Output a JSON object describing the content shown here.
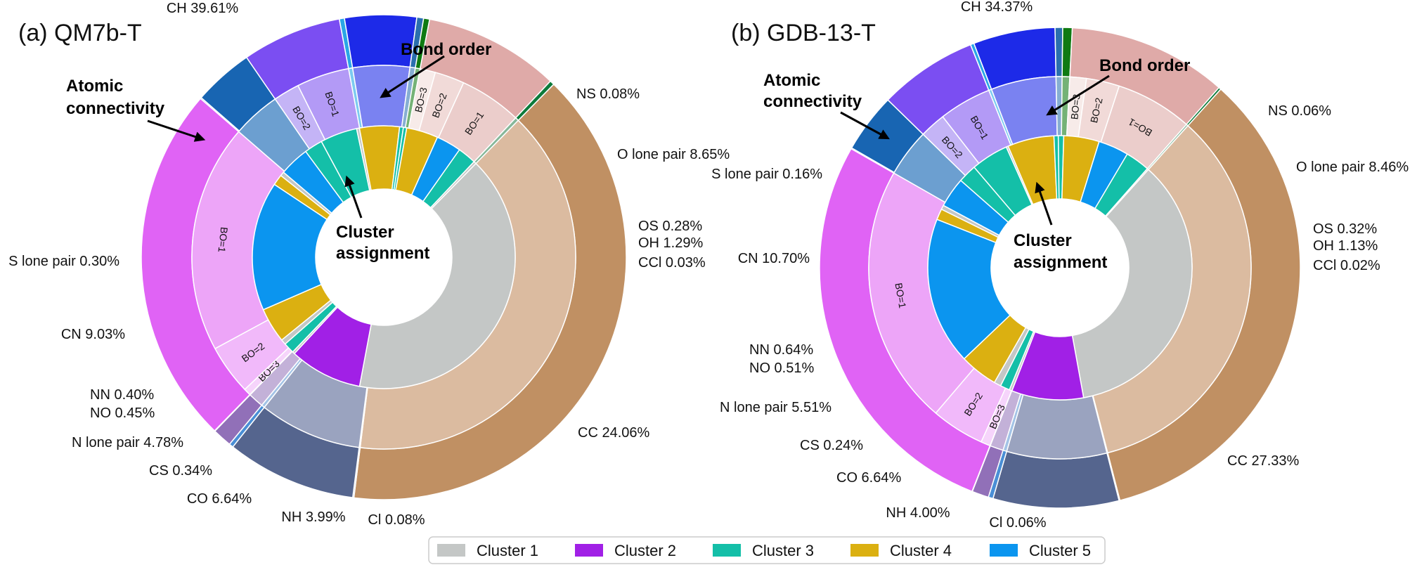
{
  "chart_data": [
    {
      "type": "pie",
      "title": "(a) QM7b-T",
      "annotations": [
        "Bond order",
        "Atomic connectivity",
        "Cluster assignment"
      ],
      "outer": [
        {
          "label": "CH 39.61%",
          "value": 39.61,
          "color": "#c09063"
        },
        {
          "label": "NS 0.08%",
          "value": 0.08,
          "color": "#4b6aa0"
        },
        {
          "label": "O lone pair 8.65%",
          "value": 8.65,
          "color": "#55658e"
        },
        {
          "label": "OS 0.28%",
          "value": 0.28,
          "color": "#4a8fd6"
        },
        {
          "label": "OH 1.29%",
          "value": 1.29,
          "color": "#9170b8"
        },
        {
          "label": "CCl 0.03%",
          "value": 0.03,
          "color": "#6aa0d0"
        },
        {
          "label": "CC 24.06%",
          "value": 24.06,
          "color": "#e063f5"
        },
        {
          "label": "Cl 0.08%",
          "value": 0.08,
          "color": "#1f67b3"
        },
        {
          "label": "NH 3.99%",
          "value": 3.99,
          "color": "#1865b2"
        },
        {
          "label": "CO 6.64%",
          "value": 6.64,
          "color": "#7b4ef2"
        },
        {
          "label": "CS 0.34%",
          "value": 0.34,
          "color": "#2aa6e6"
        },
        {
          "label": "N lone pair 4.78%",
          "value": 4.78,
          "color": "#1d2ae8"
        },
        {
          "label": "NO 0.45%",
          "value": 0.45,
          "color": "#2a6fae"
        },
        {
          "label": "NN 0.40%",
          "value": 0.4,
          "color": "#0f7a12"
        },
        {
          "label": "CN 9.03%",
          "value": 9.03,
          "color": "#dfaaa8"
        },
        {
          "label": "S lone pair 0.30%",
          "value": 0.3,
          "color": "#0d7a3a"
        }
      ],
      "middle": [
        {
          "label": "",
          "value": 39.61,
          "color": "#dbbba0"
        },
        {
          "label": "",
          "value": 0.08,
          "color": "#9aa6c0"
        },
        {
          "label": "",
          "value": 8.65,
          "color": "#9aa3bf"
        },
        {
          "label": "",
          "value": 0.28,
          "color": "#a3c3e6"
        },
        {
          "label": "",
          "value": 1.29,
          "color": "#c3b1d8"
        },
        {
          "label": "",
          "value": 0.03,
          "color": "#b0c8e0"
        },
        {
          "label": "BO=3",
          "value": 0.6,
          "color": "#f6d4fb"
        },
        {
          "label": "BO=2",
          "value": 4.2,
          "color": "#f1b9fa"
        },
        {
          "label": "BO=1",
          "value": 19.26,
          "color": "#eda5f8"
        },
        {
          "label": "",
          "value": 4.07,
          "color": "#6c9fd0"
        },
        {
          "label": "BO=2",
          "value": 2.2,
          "color": "#c4b4f6"
        },
        {
          "label": "BO=1",
          "value": 4.44,
          "color": "#b39af6"
        },
        {
          "label": "",
          "value": 0.34,
          "color": "#7ccbf0"
        },
        {
          "label": "",
          "value": 4.78,
          "color": "#7a82f1"
        },
        {
          "label": "",
          "value": 0.45,
          "color": "#86aed2"
        },
        {
          "label": "",
          "value": 0.4,
          "color": "#74b276"
        },
        {
          "label": "BO=3",
          "value": 1.3,
          "color": "#f7ebe9"
        },
        {
          "label": "BO=2",
          "value": 2.5,
          "color": "#f1dad8"
        },
        {
          "label": "BO=1",
          "value": 5.23,
          "color": "#ebcdcb"
        },
        {
          "label": "",
          "value": 0.3,
          "color": "#86b89a"
        }
      ],
      "inner": [
        {
          "label": "Cluster 1",
          "value": 39.61,
          "color": "#c4c7c6"
        },
        {
          "label": "Cluster 2",
          "value": 8.73,
          "color": "#a120e6"
        },
        {
          "label": "Cluster 1",
          "value": 0.28,
          "color": "#c4c7c6"
        },
        {
          "label": "Cluster 3",
          "value": 1.29,
          "color": "#14bfa8"
        },
        {
          "label": "Cluster 1",
          "value": 0.63,
          "color": "#c4c7c6"
        },
        {
          "label": "Cluster 4",
          "value": 4.2,
          "color": "#dbb011"
        },
        {
          "label": "Cluster 5",
          "value": 15.5,
          "color": "#0b95ef"
        },
        {
          "label": "Cluster 4",
          "value": 1.3,
          "color": "#dbb011"
        },
        {
          "label": "Cluster 1",
          "value": 0.5,
          "color": "#c4c7c6"
        },
        {
          "label": "Cluster 5",
          "value": 3.6,
          "color": "#0b95ef"
        },
        {
          "label": "Cluster 3",
          "value": 2.2,
          "color": "#14bfa8"
        },
        {
          "label": "Cluster 3",
          "value": 4.44,
          "color": "#14bfa8"
        },
        {
          "label": "Cluster 1",
          "value": 0.34,
          "color": "#c4c7c6"
        },
        {
          "label": "Cluster 4",
          "value": 4.78,
          "color": "#dbb011"
        },
        {
          "label": "Cluster 3",
          "value": 0.45,
          "color": "#14bfa8"
        },
        {
          "label": "Cluster 3",
          "value": 0.4,
          "color": "#14bfa8"
        },
        {
          "label": "Cluster 4",
          "value": 3.8,
          "color": "#dbb011"
        },
        {
          "label": "Cluster 5",
          "value": 3.0,
          "color": "#0b95ef"
        },
        {
          "label": "Cluster 3",
          "value": 2.23,
          "color": "#14bfa8"
        },
        {
          "label": "Cluster 1",
          "value": 0.3,
          "color": "#c4c7c6"
        }
      ]
    },
    {
      "type": "pie",
      "title": "(b) GDB-13-T",
      "annotations": [
        "Bond order",
        "Atomic connectivity",
        "Cluster assignment"
      ],
      "outer": [
        {
          "label": "CH 34.37%",
          "value": 34.37,
          "color": "#c09063"
        },
        {
          "label": "NS 0.06%",
          "value": 0.06,
          "color": "#4b6aa0"
        },
        {
          "label": "O lone pair 8.46%",
          "value": 8.46,
          "color": "#55658e"
        },
        {
          "label": "OS 0.32%",
          "value": 0.32,
          "color": "#4a8fd6"
        },
        {
          "label": "OH 1.13%",
          "value": 1.13,
          "color": "#9170b8"
        },
        {
          "label": "CCl 0.02%",
          "value": 0.02,
          "color": "#6aa0d0"
        },
        {
          "label": "CC 27.33%",
          "value": 27.33,
          "color": "#e063f5"
        },
        {
          "label": "Cl 0.06%",
          "value": 0.06,
          "color": "#1f67b3"
        },
        {
          "label": "NH 4.00%",
          "value": 4.0,
          "color": "#1865b2"
        },
        {
          "label": "CO 6.64%",
          "value": 6.64,
          "color": "#7b4ef2"
        },
        {
          "label": "CS 0.24%",
          "value": 0.24,
          "color": "#2aa6e6"
        },
        {
          "label": "N lone pair 5.51%",
          "value": 5.51,
          "color": "#1d2ae8"
        },
        {
          "label": "NO 0.51%",
          "value": 0.51,
          "color": "#2a6fae"
        },
        {
          "label": "NN 0.64%",
          "value": 0.64,
          "color": "#0f7a12"
        },
        {
          "label": "CN 10.70%",
          "value": 10.7,
          "color": "#dfaaa8"
        },
        {
          "label": "S lone pair 0.16%",
          "value": 0.16,
          "color": "#0d7a3a"
        }
      ],
      "middle": [
        {
          "label": "",
          "value": 34.37,
          "color": "#dbbba0"
        },
        {
          "label": "",
          "value": 0.06,
          "color": "#9aa6c0"
        },
        {
          "label": "",
          "value": 8.46,
          "color": "#9aa3bf"
        },
        {
          "label": "",
          "value": 0.32,
          "color": "#a3c3e6"
        },
        {
          "label": "",
          "value": 1.13,
          "color": "#c3b1d8"
        },
        {
          "label": "",
          "value": 0.02,
          "color": "#b0c8e0"
        },
        {
          "label": "BO=3",
          "value": 0.8,
          "color": "#f6d4fb"
        },
        {
          "label": "BO=2",
          "value": 4.5,
          "color": "#f1b9fa"
        },
        {
          "label": "BO=1",
          "value": 22.03,
          "color": "#eda5f8"
        },
        {
          "label": "",
          "value": 4.06,
          "color": "#6c9fd0"
        },
        {
          "label": "BO=2",
          "value": 2.2,
          "color": "#c4b4f6"
        },
        {
          "label": "BO=1",
          "value": 4.44,
          "color": "#b39af6"
        },
        {
          "label": "",
          "value": 0.24,
          "color": "#7ccbf0"
        },
        {
          "label": "",
          "value": 5.51,
          "color": "#7a82f1"
        },
        {
          "label": "",
          "value": 0.51,
          "color": "#86aed2"
        },
        {
          "label": "",
          "value": 0.64,
          "color": "#74b276"
        },
        {
          "label": "BO=3",
          "value": 1.4,
          "color": "#f7ebe9"
        },
        {
          "label": "BO=2",
          "value": 2.8,
          "color": "#f1dad8"
        },
        {
          "label": "BO=1",
          "value": 6.5,
          "color": "#ebcdcb"
        },
        {
          "label": "",
          "value": 0.16,
          "color": "#86b89a"
        }
      ],
      "inner": [
        {
          "label": "Cluster 1",
          "value": 34.37,
          "color": "#c4c7c6"
        },
        {
          "label": "Cluster 2",
          "value": 8.52,
          "color": "#a120e6"
        },
        {
          "label": "Cluster 1",
          "value": 0.32,
          "color": "#c4c7c6"
        },
        {
          "label": "Cluster 3",
          "value": 1.13,
          "color": "#14bfa8"
        },
        {
          "label": "Cluster 1",
          "value": 0.82,
          "color": "#c4c7c6"
        },
        {
          "label": "Cluster 4",
          "value": 4.5,
          "color": "#dbb011"
        },
        {
          "label": "Cluster 5",
          "value": 17.5,
          "color": "#0b95ef"
        },
        {
          "label": "Cluster 4",
          "value": 1.3,
          "color": "#dbb011"
        },
        {
          "label": "Cluster 1",
          "value": 0.5,
          "color": "#c4c7c6"
        },
        {
          "label": "Cluster 5",
          "value": 3.56,
          "color": "#0b95ef"
        },
        {
          "label": "Cluster 3",
          "value": 2.2,
          "color": "#14bfa8"
        },
        {
          "label": "Cluster 3",
          "value": 4.44,
          "color": "#14bfa8"
        },
        {
          "label": "Cluster 1",
          "value": 0.24,
          "color": "#c4c7c6"
        },
        {
          "label": "Cluster 4",
          "value": 5.51,
          "color": "#dbb011"
        },
        {
          "label": "Cluster 3",
          "value": 0.51,
          "color": "#14bfa8"
        },
        {
          "label": "Cluster 3",
          "value": 0.64,
          "color": "#14bfa8"
        },
        {
          "label": "Cluster 4",
          "value": 4.2,
          "color": "#dbb011"
        },
        {
          "label": "Cluster 5",
          "value": 3.6,
          "color": "#0b95ef"
        },
        {
          "label": "Cluster 3",
          "value": 2.9,
          "color": "#14bfa8"
        },
        {
          "label": "Cluster 1",
          "value": 0.16,
          "color": "#c4c7c6"
        }
      ]
    }
  ],
  "legend": {
    "items": [
      {
        "label": "Cluster 1",
        "color": "#c4c7c6"
      },
      {
        "label": "Cluster 2",
        "color": "#a120e6"
      },
      {
        "label": "Cluster 3",
        "color": "#14bfa8"
      },
      {
        "label": "Cluster 4",
        "color": "#dbb011"
      },
      {
        "label": "Cluster 5",
        "color": "#0b95ef"
      }
    ]
  }
}
